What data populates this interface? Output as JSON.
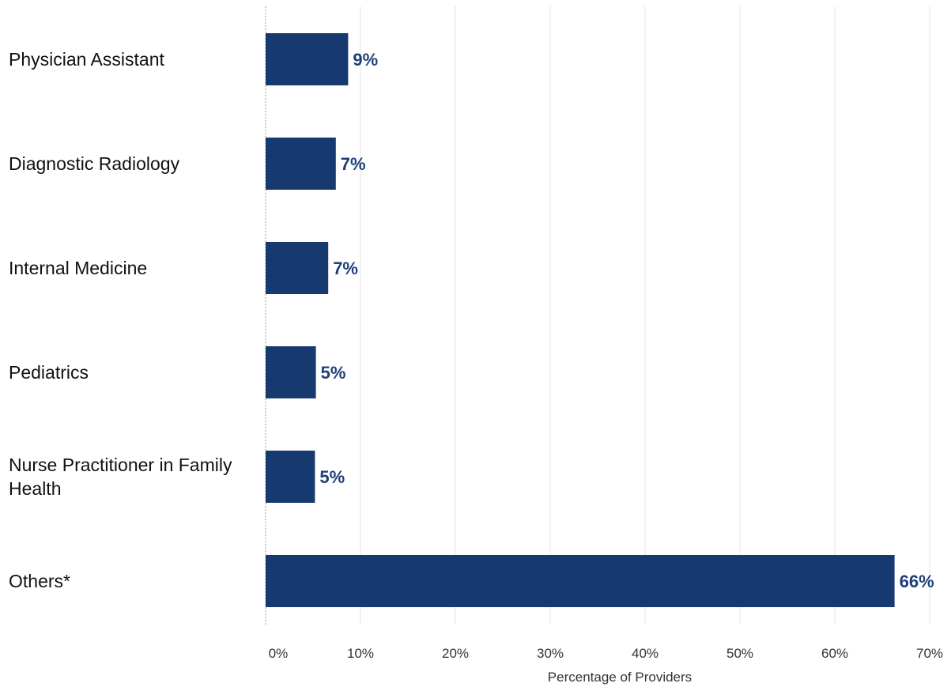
{
  "chart_data": {
    "type": "bar",
    "orientation": "horizontal",
    "categories": [
      "Physician Assistant",
      "Diagnostic Radiology",
      "Internal Medicine",
      "Pediatrics",
      "Nurse Practitioner in Family Health",
      "Others*"
    ],
    "category_lines": [
      [
        "Physician Assistant"
      ],
      [
        "Diagnostic Radiology"
      ],
      [
        "Internal Medicine"
      ],
      [
        "Pediatrics"
      ],
      [
        "Nurse Practitioner in Family",
        "Health"
      ],
      [
        "Others*"
      ]
    ],
    "values": [
      8.7,
      7.4,
      6.6,
      5.3,
      5.2,
      66.3
    ],
    "data_labels": [
      "9%",
      "7%",
      "7%",
      "5%",
      "5%",
      "66%"
    ],
    "xlabel": "Percentage of Providers",
    "ylabel": "",
    "title": "",
    "xlim": [
      0,
      70
    ],
    "x_ticks": [
      "0%",
      "10%",
      "20%",
      "30%",
      "40%",
      "50%",
      "60%",
      "70%"
    ],
    "grid": "vertical",
    "legend": "none",
    "bar_color": "#163a70",
    "label_color": "#1f3f78"
  }
}
